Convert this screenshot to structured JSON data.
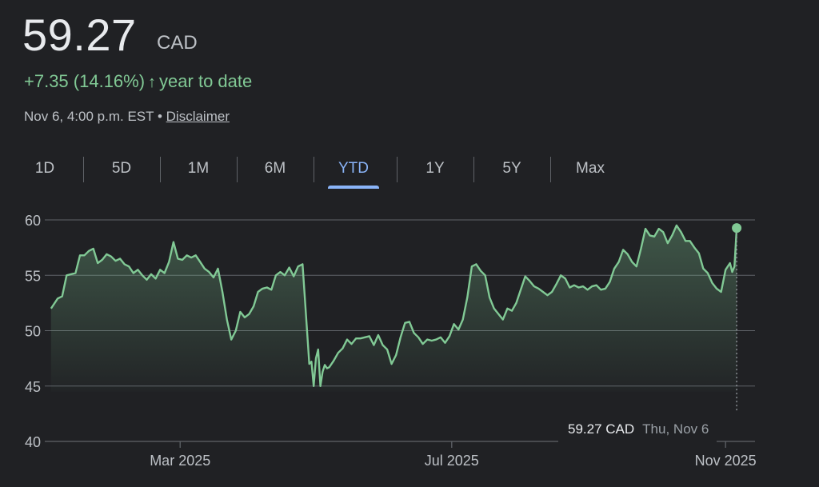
{
  "header": {
    "price": "59.27",
    "currency": "CAD",
    "change": "+7.35 (14.16%)",
    "change_arrow": "↑",
    "change_period": "year to date",
    "timestamp": "Nov 6, 4:00 p.m. EST",
    "bullet": "•",
    "disclaimer": "Disclaimer"
  },
  "tabs": [
    {
      "label": "1D"
    },
    {
      "label": "5D"
    },
    {
      "label": "1M"
    },
    {
      "label": "6M"
    },
    {
      "label": "YTD",
      "active": true
    },
    {
      "label": "1Y"
    },
    {
      "label": "5Y"
    },
    {
      "label": "Max"
    }
  ],
  "tooltip": {
    "value": "59.27 CAD",
    "date": "Thu, Nov 6"
  },
  "colors": {
    "line": "#81c995",
    "accent": "#8ab4f8",
    "background": "#202124",
    "grid": "#5f6368"
  },
  "chart_data": {
    "type": "line",
    "ylim": [
      40,
      60
    ],
    "yticks": [
      60,
      55,
      50,
      45,
      40
    ],
    "xticks": [
      {
        "day": 59,
        "label": "Mar 2025"
      },
      {
        "day": 181,
        "label": "Jul 2025"
      },
      {
        "day": 304,
        "label": "Nov 2025"
      }
    ],
    "x_domain": [
      0,
      314
    ],
    "grid": true,
    "last_point": {
      "day": 309,
      "value": 59.27
    },
    "series": [
      {
        "values": [
          [
            1,
            52.0
          ],
          [
            4,
            52.9
          ],
          [
            6,
            53.1
          ],
          [
            8,
            55.0
          ],
          [
            10,
            55.1
          ],
          [
            12,
            55.2
          ],
          [
            14,
            56.8
          ],
          [
            16,
            56.8
          ],
          [
            18,
            57.2
          ],
          [
            20,
            57.4
          ],
          [
            22,
            56.1
          ],
          [
            24,
            56.4
          ],
          [
            26,
            56.9
          ],
          [
            28,
            56.7
          ],
          [
            30,
            56.3
          ],
          [
            32,
            56.5
          ],
          [
            34,
            56.0
          ],
          [
            36,
            55.8
          ],
          [
            38,
            55.2
          ],
          [
            40,
            55.5
          ],
          [
            42,
            55.0
          ],
          [
            44,
            54.6
          ],
          [
            46,
            55.1
          ],
          [
            48,
            54.7
          ],
          [
            50,
            55.5
          ],
          [
            52,
            55.2
          ],
          [
            54,
            56.2
          ],
          [
            56,
            58.0
          ],
          [
            58,
            56.5
          ],
          [
            60,
            56.4
          ],
          [
            62,
            56.8
          ],
          [
            64,
            56.6
          ],
          [
            66,
            56.8
          ],
          [
            68,
            56.2
          ],
          [
            70,
            55.6
          ],
          [
            72,
            55.3
          ],
          [
            74,
            54.8
          ],
          [
            76,
            55.6
          ],
          [
            78,
            53.5
          ],
          [
            80,
            51.0
          ],
          [
            82,
            49.2
          ],
          [
            84,
            50.0
          ],
          [
            86,
            51.7
          ],
          [
            88,
            51.2
          ],
          [
            90,
            51.5
          ],
          [
            92,
            52.2
          ],
          [
            94,
            53.5
          ],
          [
            96,
            53.8
          ],
          [
            98,
            53.9
          ],
          [
            100,
            53.7
          ],
          [
            102,
            55.0
          ],
          [
            104,
            55.3
          ],
          [
            106,
            55.0
          ],
          [
            108,
            55.7
          ],
          [
            110,
            54.9
          ],
          [
            112,
            55.8
          ],
          [
            114,
            56.0
          ],
          [
            115,
            53.0
          ],
          [
            117,
            47.0
          ],
          [
            118,
            47.2
          ],
          [
            119,
            45.0
          ],
          [
            120,
            47.5
          ],
          [
            121,
            48.3
          ],
          [
            122,
            45.0
          ],
          [
            123,
            46.3
          ],
          [
            124,
            46.9
          ],
          [
            125,
            46.6
          ],
          [
            126,
            46.7
          ],
          [
            128,
            47.3
          ],
          [
            130,
            48.0
          ],
          [
            132,
            48.4
          ],
          [
            134,
            49.2
          ],
          [
            136,
            48.8
          ],
          [
            138,
            49.3
          ],
          [
            140,
            49.3
          ],
          [
            142,
            49.4
          ],
          [
            144,
            49.5
          ],
          [
            146,
            48.7
          ],
          [
            148,
            49.6
          ],
          [
            150,
            48.7
          ],
          [
            152,
            48.3
          ],
          [
            154,
            47.0
          ],
          [
            156,
            47.8
          ],
          [
            158,
            49.4
          ],
          [
            160,
            50.7
          ],
          [
            162,
            50.8
          ],
          [
            164,
            49.8
          ],
          [
            166,
            49.4
          ],
          [
            168,
            48.8
          ],
          [
            170,
            49.2
          ],
          [
            172,
            49.1
          ],
          [
            174,
            49.2
          ],
          [
            176,
            49.4
          ],
          [
            178,
            48.9
          ],
          [
            180,
            49.5
          ],
          [
            182,
            50.6
          ],
          [
            184,
            50.1
          ],
          [
            186,
            51.0
          ],
          [
            188,
            53.0
          ],
          [
            190,
            55.8
          ],
          [
            192,
            56.0
          ],
          [
            194,
            55.4
          ],
          [
            196,
            55.0
          ],
          [
            198,
            53.0
          ],
          [
            200,
            52.0
          ],
          [
            202,
            51.5
          ],
          [
            204,
            51.0
          ],
          [
            206,
            52.0
          ],
          [
            208,
            51.8
          ],
          [
            210,
            52.5
          ],
          [
            212,
            53.7
          ],
          [
            214,
            54.9
          ],
          [
            216,
            54.5
          ],
          [
            218,
            54.0
          ],
          [
            220,
            53.8
          ],
          [
            222,
            53.5
          ],
          [
            224,
            53.2
          ],
          [
            226,
            53.5
          ],
          [
            228,
            54.2
          ],
          [
            230,
            55.0
          ],
          [
            232,
            54.7
          ],
          [
            234,
            53.9
          ],
          [
            236,
            54.1
          ],
          [
            238,
            53.9
          ],
          [
            240,
            54.0
          ],
          [
            242,
            53.7
          ],
          [
            244,
            54.0
          ],
          [
            246,
            54.1
          ],
          [
            248,
            53.7
          ],
          [
            250,
            53.8
          ],
          [
            252,
            54.4
          ],
          [
            254,
            55.6
          ],
          [
            256,
            56.2
          ],
          [
            258,
            57.3
          ],
          [
            260,
            56.9
          ],
          [
            262,
            56.2
          ],
          [
            264,
            55.8
          ],
          [
            266,
            57.4
          ],
          [
            268,
            59.2
          ],
          [
            270,
            58.6
          ],
          [
            272,
            58.5
          ],
          [
            274,
            59.2
          ],
          [
            276,
            58.9
          ],
          [
            278,
            57.9
          ],
          [
            280,
            58.6
          ],
          [
            282,
            59.5
          ],
          [
            284,
            58.9
          ],
          [
            286,
            58.1
          ],
          [
            288,
            58.1
          ],
          [
            290,
            57.5
          ],
          [
            292,
            57.0
          ],
          [
            294,
            55.6
          ],
          [
            296,
            55.2
          ],
          [
            298,
            54.3
          ],
          [
            300,
            53.8
          ],
          [
            302,
            53.5
          ],
          [
            304,
            55.5
          ],
          [
            306,
            56.1
          ],
          [
            307,
            55.3
          ],
          [
            308,
            55.8
          ],
          [
            309,
            59.27
          ]
        ]
      }
    ]
  }
}
